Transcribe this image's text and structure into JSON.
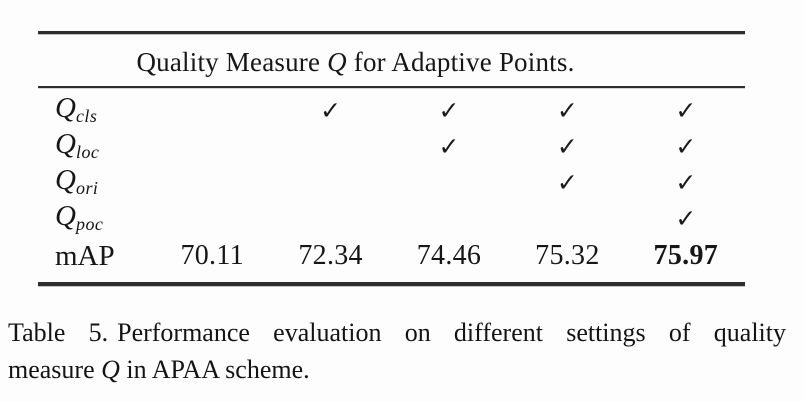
{
  "table": {
    "header": {
      "pre": "Quality Measure",
      "q_symbol": "Q",
      "post": "for Adaptive Points."
    },
    "rows": [
      {
        "label_base": "Q",
        "label_sub": "cls",
        "cells": [
          "",
          "✓",
          "✓",
          "✓",
          "✓"
        ]
      },
      {
        "label_base": "Q",
        "label_sub": "loc",
        "cells": [
          "",
          "",
          "✓",
          "✓",
          "✓"
        ]
      },
      {
        "label_base": "Q",
        "label_sub": "ori",
        "cells": [
          "",
          "",
          "",
          "✓",
          "✓"
        ]
      },
      {
        "label_base": "Q",
        "label_sub": "poc",
        "cells": [
          "",
          "",
          "",
          "",
          "✓"
        ]
      }
    ],
    "map_row": {
      "label": "mAP",
      "values": [
        "70.11",
        "72.34",
        "74.46",
        "75.32",
        "75.97"
      ]
    }
  },
  "caption": {
    "label": "Table 5.",
    "line1_rest": "Performance evaluation on different settings of quality",
    "line2_pre": "measure",
    "q_symbol": "Q",
    "line2_post": "in APAA scheme."
  },
  "colors": {
    "text": "#161616",
    "rule": "#2e2e2e",
    "background": "#fdfdfd"
  }
}
